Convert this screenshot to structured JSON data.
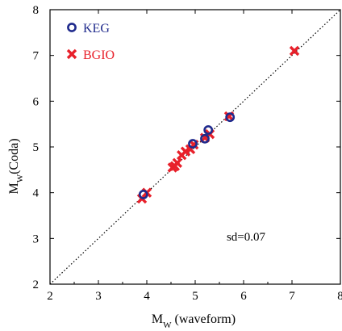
{
  "chart_data": {
    "type": "scatter",
    "xlabel": "MW (waveform)",
    "ylabel": "MW(Coda)",
    "xlim": [
      2,
      8
    ],
    "ylim": [
      2,
      8
    ],
    "xticks": [
      "2",
      "3",
      "4",
      "5",
      "6",
      "7",
      "8"
    ],
    "yticks": [
      "2",
      "3",
      "4",
      "5",
      "6",
      "7",
      "8"
    ],
    "legend_position": "top-left",
    "annotation": "sd=0.07",
    "reference_line": {
      "style": "dotted",
      "from": [
        2,
        2
      ],
      "to": [
        8,
        8
      ]
    },
    "series": [
      {
        "name": "KEG",
        "marker": "circle-open",
        "color": "#1f2a8c",
        "x": [
          3.93,
          4.95,
          5.2,
          5.27,
          5.72
        ],
        "y": [
          3.96,
          5.07,
          5.18,
          5.37,
          5.65
        ]
      },
      {
        "name": "BGIO",
        "marker": "x-filled",
        "color": "#e8202a",
        "x": [
          3.9,
          4.0,
          4.53,
          4.58,
          4.63,
          4.72,
          4.8,
          4.9,
          4.97,
          5.2,
          5.3,
          5.7,
          7.05
        ],
        "y": [
          3.87,
          4.0,
          4.55,
          4.58,
          4.65,
          4.82,
          4.9,
          4.95,
          5.05,
          5.2,
          5.28,
          5.67,
          7.1
        ]
      }
    ]
  }
}
